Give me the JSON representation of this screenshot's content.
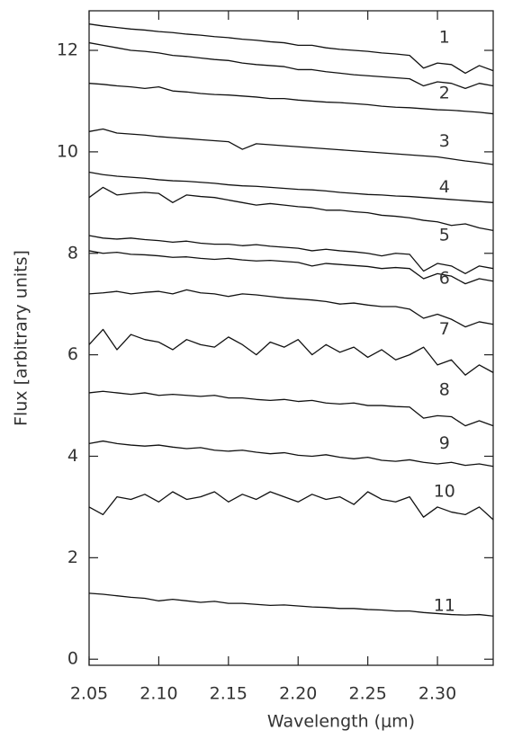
{
  "chart_data": {
    "type": "line",
    "xlabel": "Wavelength (μm)",
    "ylabel": "Flux [arbitrary units]",
    "xlim": [
      2.05,
      2.34
    ],
    "ylim": [
      -0.12,
      12.78
    ],
    "xticks": [
      2.05,
      {
        "value": 2.1,
        "label": "2.10"
      },
      2.15,
      {
        "value": 2.2,
        "label": "2.20"
      },
      2.25,
      {
        "value": 2.3,
        "label": "2.30"
      }
    ],
    "yticks": [
      0,
      2,
      4,
      6,
      8,
      10,
      12
    ],
    "x": [
      2.05,
      2.06,
      2.07,
      2.08,
      2.09,
      2.1,
      2.11,
      2.12,
      2.13,
      2.14,
      2.15,
      2.16,
      2.17,
      2.18,
      2.19,
      2.2,
      2.21,
      2.22,
      2.23,
      2.24,
      2.25,
      2.26,
      2.27,
      2.28,
      2.29,
      2.3,
      2.31,
      2.32,
      2.33,
      2.34
    ],
    "series": [
      {
        "color": "#111111",
        "values": [
          12.52,
          12.48,
          12.45,
          12.42,
          12.4,
          12.37,
          12.35,
          12.32,
          12.3,
          12.27,
          12.25,
          12.22,
          12.2,
          12.17,
          12.15,
          12.1,
          12.1,
          12.05,
          12.02,
          12.0,
          11.98,
          11.95,
          11.93,
          11.9,
          11.65,
          11.75,
          11.72,
          11.55,
          11.7,
          11.6
        ]
      },
      {
        "color": "#111111",
        "values": [
          12.15,
          12.1,
          12.05,
          12.0,
          11.98,
          11.95,
          11.9,
          11.88,
          11.85,
          11.82,
          11.8,
          11.75,
          11.72,
          11.7,
          11.68,
          11.62,
          11.62,
          11.58,
          11.55,
          11.52,
          11.5,
          11.48,
          11.46,
          11.44,
          11.3,
          11.38,
          11.35,
          11.25,
          11.35,
          11.3
        ]
      },
      {
        "color": "#111111",
        "values": [
          11.35,
          11.33,
          11.3,
          11.28,
          11.25,
          11.28,
          11.2,
          11.18,
          11.15,
          11.13,
          11.12,
          11.1,
          11.08,
          11.05,
          11.05,
          11.02,
          11.0,
          10.98,
          10.97,
          10.95,
          10.93,
          10.9,
          10.88,
          10.87,
          10.85,
          10.83,
          10.82,
          10.8,
          10.78,
          10.75
        ]
      },
      {
        "color": "#111111",
        "values": [
          10.4,
          10.45,
          10.37,
          10.35,
          10.33,
          10.3,
          10.28,
          10.26,
          10.24,
          10.22,
          10.2,
          10.05,
          10.16,
          10.14,
          10.12,
          10.1,
          10.08,
          10.06,
          10.04,
          10.02,
          10.0,
          9.98,
          9.96,
          9.94,
          9.92,
          9.9,
          9.86,
          9.82,
          9.79,
          9.75
        ]
      },
      {
        "color": "#111111",
        "values": [
          9.6,
          9.55,
          9.52,
          9.5,
          9.48,
          9.45,
          9.43,
          9.42,
          9.4,
          9.38,
          9.35,
          9.33,
          9.32,
          9.3,
          9.28,
          9.26,
          9.25,
          9.23,
          9.2,
          9.18,
          9.16,
          9.15,
          9.13,
          9.12,
          9.1,
          9.08,
          9.06,
          9.04,
          9.02,
          9.0
        ]
      },
      {
        "color": "#111111",
        "values": [
          9.1,
          9.3,
          9.15,
          9.18,
          9.2,
          9.18,
          9.0,
          9.15,
          9.12,
          9.1,
          9.05,
          9.0,
          8.95,
          8.98,
          8.95,
          8.92,
          8.9,
          8.85,
          8.85,
          8.82,
          8.8,
          8.75,
          8.73,
          8.7,
          8.65,
          8.62,
          8.55,
          8.58,
          8.5,
          8.45
        ]
      },
      {
        "color": "#111111",
        "values": [
          8.35,
          8.3,
          8.28,
          8.3,
          8.27,
          8.25,
          8.22,
          8.24,
          8.2,
          8.18,
          8.18,
          8.15,
          8.17,
          8.14,
          8.12,
          8.1,
          8.05,
          8.08,
          8.05,
          8.03,
          8.0,
          7.95,
          8.0,
          7.98,
          7.65,
          7.8,
          7.75,
          7.6,
          7.75,
          7.7
        ]
      },
      {
        "color": "#111111",
        "values": [
          8.05,
          8.0,
          8.02,
          7.98,
          7.97,
          7.95,
          7.92,
          7.93,
          7.9,
          7.88,
          7.9,
          7.87,
          7.85,
          7.86,
          7.84,
          7.82,
          7.75,
          7.8,
          7.78,
          7.76,
          7.74,
          7.7,
          7.72,
          7.7,
          7.5,
          7.6,
          7.55,
          7.4,
          7.5,
          7.45
        ]
      },
      {
        "color": "#111111",
        "values": [
          7.2,
          7.22,
          7.25,
          7.2,
          7.23,
          7.25,
          7.2,
          7.28,
          7.22,
          7.2,
          7.15,
          7.2,
          7.18,
          7.15,
          7.12,
          7.1,
          7.08,
          7.05,
          7.0,
          7.02,
          6.98,
          6.95,
          6.95,
          6.9,
          6.72,
          6.8,
          6.7,
          6.55,
          6.65,
          6.6
        ]
      },
      {
        "color": "#111111",
        "values": [
          6.2,
          6.5,
          6.1,
          6.4,
          6.3,
          6.25,
          6.1,
          6.3,
          6.2,
          6.15,
          6.35,
          6.2,
          6.0,
          6.25,
          6.15,
          6.3,
          6.0,
          6.2,
          6.05,
          6.15,
          5.95,
          6.1,
          5.9,
          6.0,
          6.15,
          5.8,
          5.9,
          5.6,
          5.8,
          5.65
        ]
      },
      {
        "color": "#111111",
        "values": [
          5.25,
          5.28,
          5.25,
          5.22,
          5.25,
          5.2,
          5.22,
          5.2,
          5.18,
          5.2,
          5.15,
          5.15,
          5.12,
          5.1,
          5.12,
          5.08,
          5.1,
          5.05,
          5.03,
          5.05,
          5.0,
          5.0,
          4.98,
          4.97,
          4.75,
          4.8,
          4.78,
          4.6,
          4.7,
          4.6
        ]
      },
      {
        "color": "#111111",
        "values": [
          4.25,
          4.3,
          4.25,
          4.22,
          4.2,
          4.22,
          4.18,
          4.15,
          4.17,
          4.12,
          4.1,
          4.12,
          4.08,
          4.05,
          4.07,
          4.02,
          4.0,
          4.03,
          3.98,
          3.95,
          3.98,
          3.92,
          3.9,
          3.93,
          3.88,
          3.85,
          3.88,
          3.82,
          3.85,
          3.8
        ]
      },
      {
        "color": "#111111",
        "values": [
          3.0,
          2.85,
          3.2,
          3.15,
          3.25,
          3.1,
          3.3,
          3.15,
          3.2,
          3.3,
          3.1,
          3.25,
          3.15,
          3.3,
          3.2,
          3.1,
          3.25,
          3.15,
          3.2,
          3.05,
          3.3,
          3.15,
          3.1,
          3.2,
          2.8,
          3.0,
          2.9,
          2.85,
          3.0,
          2.75
        ]
      },
      {
        "color": "#111111",
        "values": [
          1.3,
          1.28,
          1.25,
          1.22,
          1.2,
          1.15,
          1.18,
          1.15,
          1.12,
          1.14,
          1.1,
          1.1,
          1.08,
          1.06,
          1.07,
          1.05,
          1.03,
          1.02,
          1.0,
          1.0,
          0.98,
          0.97,
          0.95,
          0.95,
          0.92,
          0.9,
          0.88,
          0.87,
          0.88,
          0.85
        ]
      }
    ],
    "annotations": [
      {
        "text": "1",
        "x": 2.305,
        "y": 12.25
      },
      {
        "text": "2",
        "x": 2.305,
        "y": 11.15
      },
      {
        "text": "3",
        "x": 2.305,
        "y": 10.2
      },
      {
        "text": "4",
        "x": 2.305,
        "y": 9.3
      },
      {
        "text": "5",
        "x": 2.305,
        "y": 8.35
      },
      {
        "text": "6",
        "x": 2.305,
        "y": 7.5
      },
      {
        "text": "7",
        "x": 2.305,
        "y": 6.5
      },
      {
        "text": "8",
        "x": 2.305,
        "y": 5.3
      },
      {
        "text": "9",
        "x": 2.305,
        "y": 4.25
      },
      {
        "text": "10",
        "x": 2.305,
        "y": 3.3
      },
      {
        "text": "11",
        "x": 2.305,
        "y": 1.05
      }
    ]
  }
}
